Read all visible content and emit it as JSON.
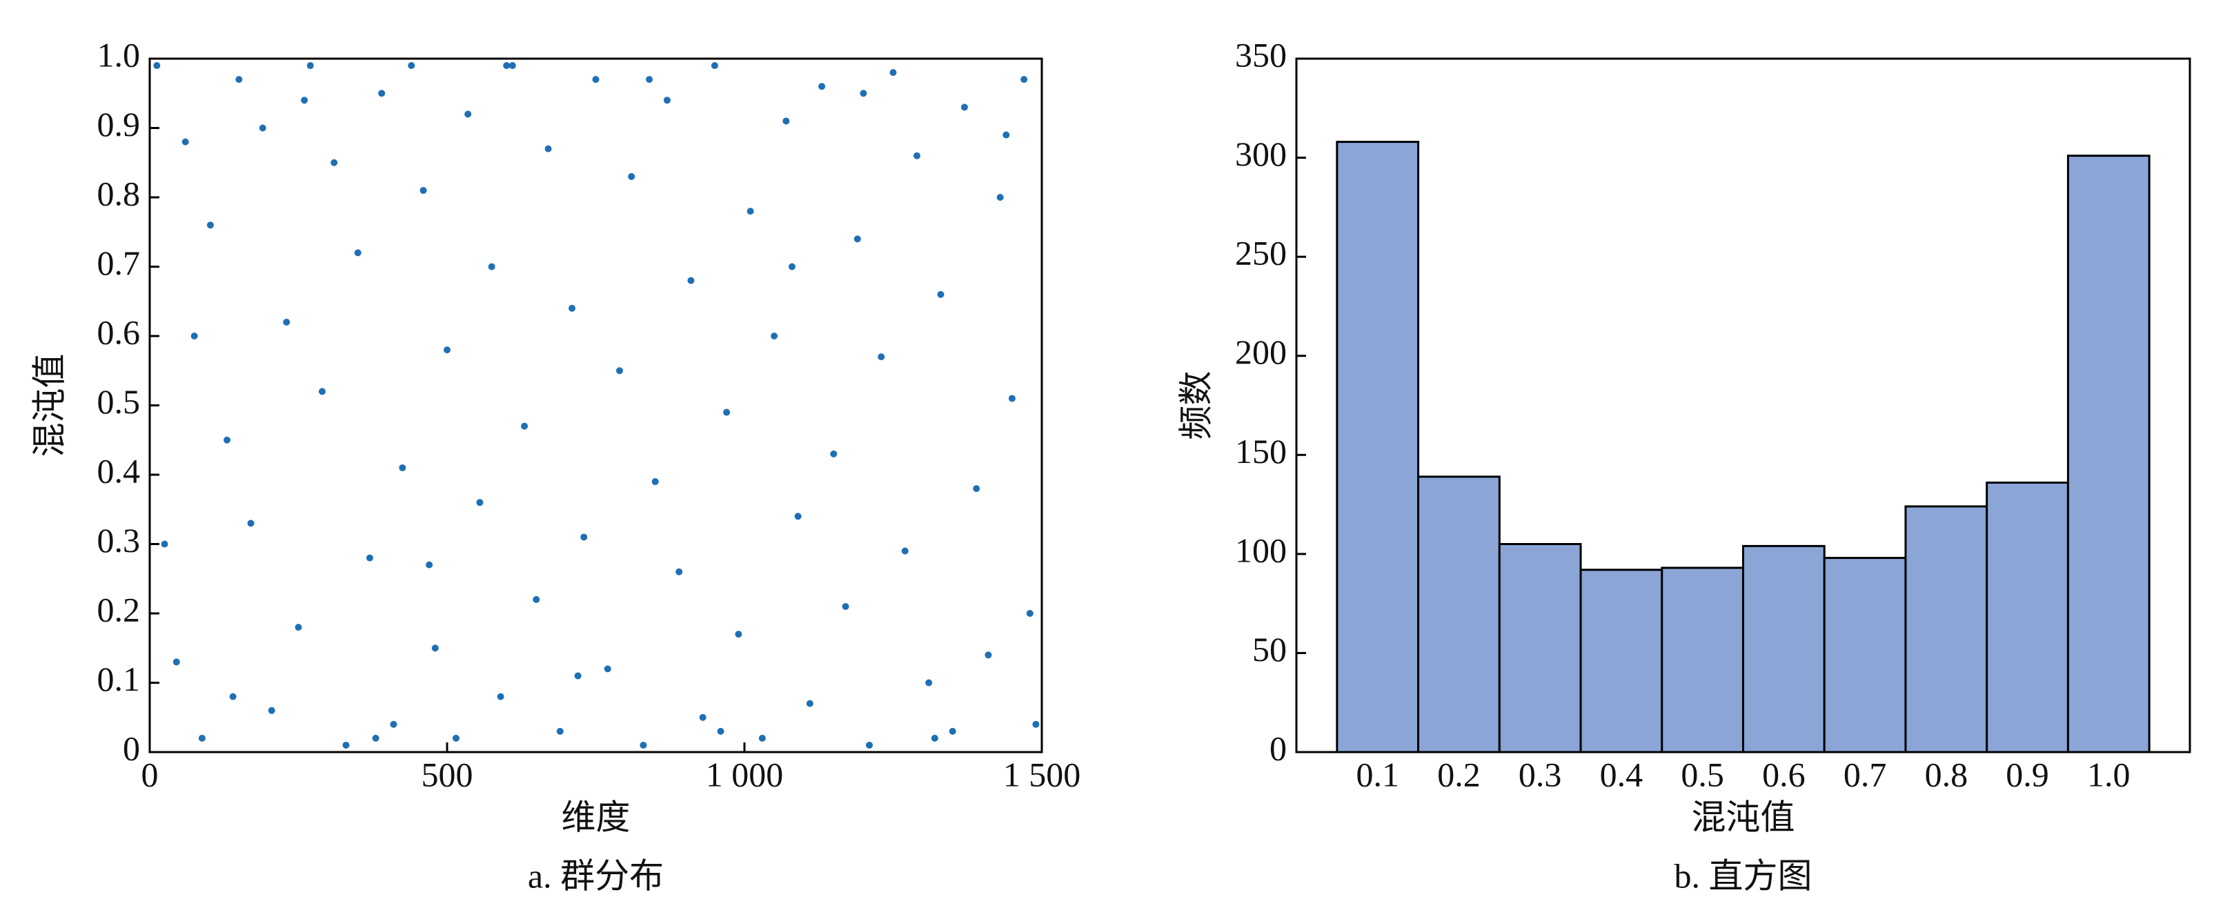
{
  "chart_data": [
    {
      "type": "scatter",
      "xlabel": "维度",
      "ylabel": "混沌值",
      "caption": "a. 群分布",
      "color": "#1f6fb4",
      "x": [
        12,
        45,
        60,
        88,
        102,
        130,
        150,
        170,
        190,
        205,
        230,
        250,
        270,
        290,
        310,
        330,
        350,
        370,
        390,
        410,
        425,
        440,
        460,
        480,
        500,
        515,
        535,
        555,
        575,
        590,
        610,
        630,
        650,
        670,
        690,
        710,
        730,
        750,
        770,
        790,
        810,
        830,
        850,
        870,
        890,
        910,
        930,
        950,
        970,
        990,
        1010,
        1030,
        1050,
        1070,
        1090,
        1110,
        1130,
        1150,
        1170,
        1190,
        1210,
        1230,
        1250,
        1270,
        1290,
        1310,
        1330,
        1350,
        1370,
        1390,
        1410,
        1430,
        1450,
        1470,
        1490,
        25,
        75,
        140,
        260,
        380,
        470,
        600,
        720,
        840,
        960,
        1080,
        1200,
        1320,
        1440,
        1480
      ],
      "values": [
        0.99,
        0.13,
        0.88,
        0.02,
        0.76,
        0.45,
        0.97,
        0.33,
        0.9,
        0.06,
        0.62,
        0.18,
        0.99,
        0.52,
        0.85,
        0.01,
        0.72,
        0.28,
        0.95,
        0.04,
        0.41,
        0.99,
        0.81,
        0.15,
        0.58,
        0.02,
        0.92,
        0.36,
        0.7,
        0.08,
        0.99,
        0.47,
        0.22,
        0.87,
        0.03,
        0.64,
        0.31,
        0.97,
        0.12,
        0.55,
        0.83,
        0.01,
        0.39,
        0.94,
        0.26,
        0.68,
        0.05,
        0.99,
        0.49,
        0.17,
        0.78,
        0.02,
        0.6,
        0.91,
        0.34,
        0.07,
        0.96,
        0.43,
        0.21,
        0.74,
        0.01,
        0.57,
        0.98,
        0.29,
        0.86,
        0.1,
        0.66,
        0.03,
        0.93,
        0.38,
        0.14,
        0.8,
        0.51,
        0.97,
        0.04,
        0.3,
        0.6,
        0.08,
        0.94,
        0.02,
        0.27,
        0.99,
        0.11,
        0.97,
        0.03,
        0.7,
        0.95,
        0.02,
        0.89,
        0.2
      ],
      "xlim": [
        0,
        1500
      ],
      "xticks": [
        0,
        500,
        {
          "value": 1000,
          "label": "1 000"
        },
        {
          "value": 1500,
          "label": "1 500"
        }
      ],
      "ylim": [
        0,
        1
      ],
      "yticks": [
        0,
        0.1,
        0.2,
        0.3,
        0.4,
        0.5,
        0.6,
        0.7,
        0.8,
        0.9,
        {
          "value": 1,
          "label": "1.0"
        }
      ]
    },
    {
      "type": "bar",
      "xlabel": "混沌值",
      "ylabel": "频数",
      "caption": "b. 直方图",
      "color": "#8aa5d6",
      "categories": [
        "0.1",
        "0.2",
        "0.3",
        "0.4",
        "0.5",
        "0.6",
        "0.7",
        "0.8",
        "0.9",
        "1.0"
      ],
      "values": [
        308,
        139,
        105,
        92,
        93,
        104,
        98,
        124,
        136,
        301
      ],
      "ylim": [
        0,
        350
      ],
      "yticks": [
        0,
        50,
        100,
        150,
        200,
        250,
        300,
        350
      ]
    }
  ]
}
